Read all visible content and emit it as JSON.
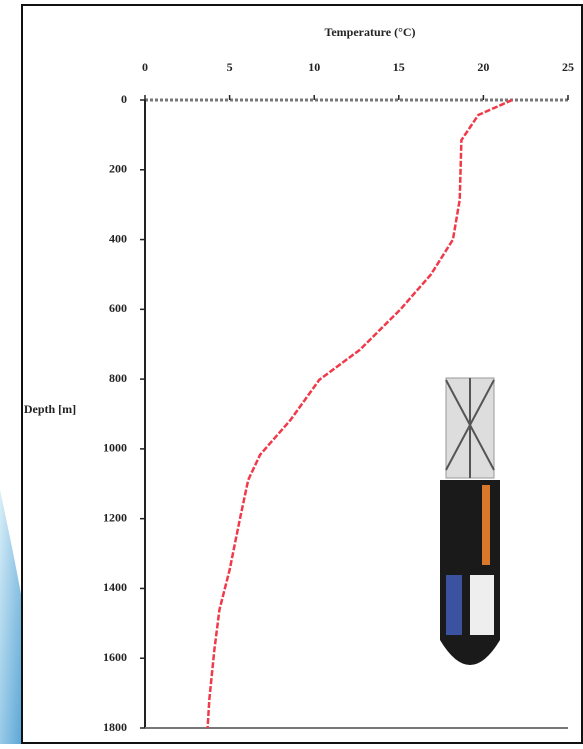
{
  "chart_data": {
    "type": "line",
    "x_label": "Temperature (°C)",
    "y_label": "Depth [m]",
    "xlim": [
      0,
      25
    ],
    "xticks": [
      0,
      5,
      10,
      15,
      20,
      25
    ],
    "ylim": [
      0,
      1800
    ],
    "yticks": [
      0,
      200,
      400,
      600,
      800,
      1000,
      1200,
      1400,
      1600,
      1800
    ],
    "y_inverted": true,
    "series": [
      {
        "color": "#f03a4a",
        "x": [
          21.7,
          19.7,
          18.7,
          18.6,
          18.2,
          16.9,
          15.1,
          12.7,
          10.3,
          8.6,
          6.8,
          6.1,
          5.6,
          5.0,
          4.4,
          4.1,
          3.8,
          3.7
        ],
        "values": [
          0,
          43,
          115,
          286,
          400,
          500,
          600,
          716,
          802,
          917,
          1017,
          1089,
          1203,
          1347,
          1461,
          1576,
          1719,
          1800
        ]
      }
    ]
  }
}
